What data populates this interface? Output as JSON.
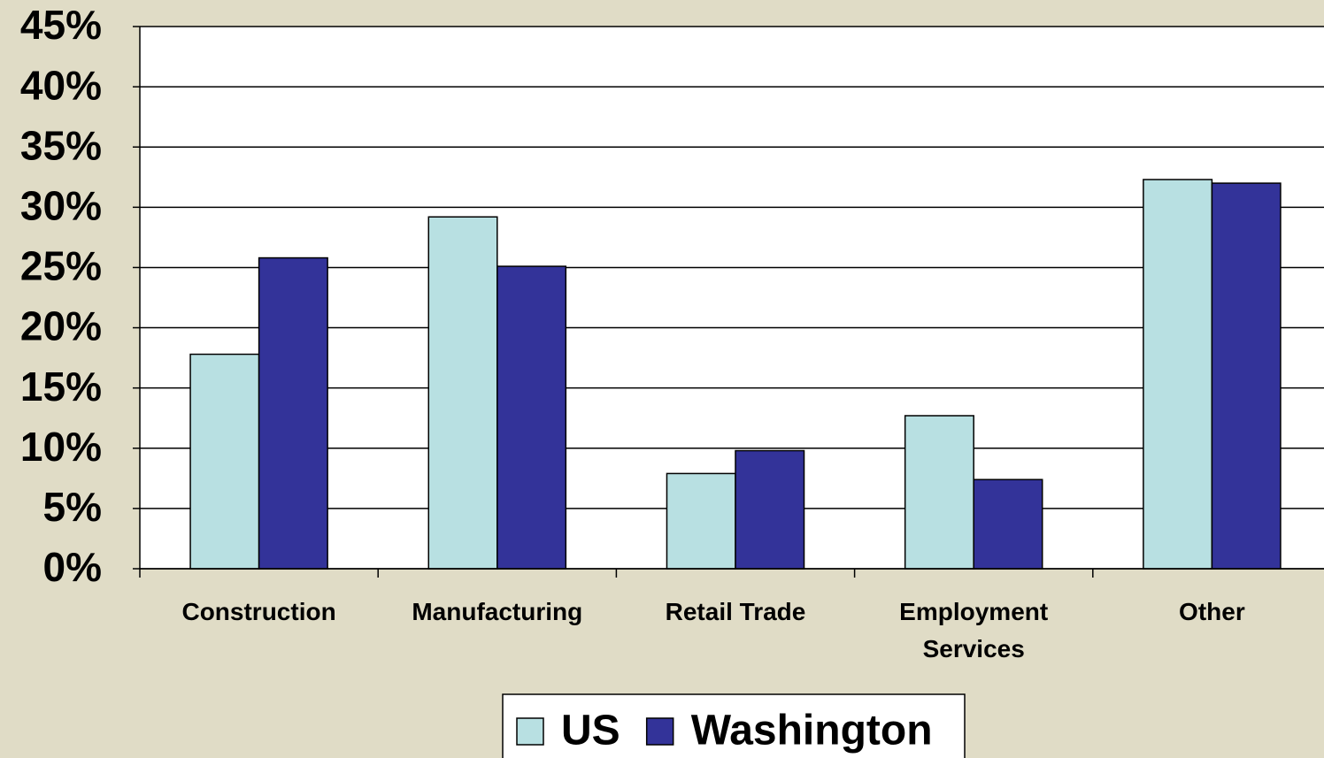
{
  "chart_data": {
    "type": "bar",
    "categories": [
      "Construction",
      "Manufacturing",
      "Retail Trade",
      "Employment Services",
      "Other"
    ],
    "series": [
      {
        "name": "US",
        "color": "#b8e0e2",
        "values": [
          17.8,
          29.2,
          7.9,
          12.7,
          32.3
        ]
      },
      {
        "name": "Washington",
        "color": "#333399",
        "values": [
          25.8,
          25.1,
          9.8,
          7.4,
          32.0
        ]
      }
    ],
    "ylim": [
      0,
      45
    ],
    "yticks": [
      {
        "value": 0,
        "label": "0%"
      },
      {
        "value": 5,
        "label": "5%"
      },
      {
        "value": 10,
        "label": "10%"
      },
      {
        "value": 15,
        "label": "15%"
      },
      {
        "value": 20,
        "label": "20%"
      },
      {
        "value": 25,
        "label": "25%"
      },
      {
        "value": 30,
        "label": "30%"
      },
      {
        "value": 35,
        "label": "35%"
      },
      {
        "value": 40,
        "label": "40%"
      },
      {
        "value": 45,
        "label": "45%"
      }
    ],
    "grid": true,
    "legend": "bottom"
  }
}
